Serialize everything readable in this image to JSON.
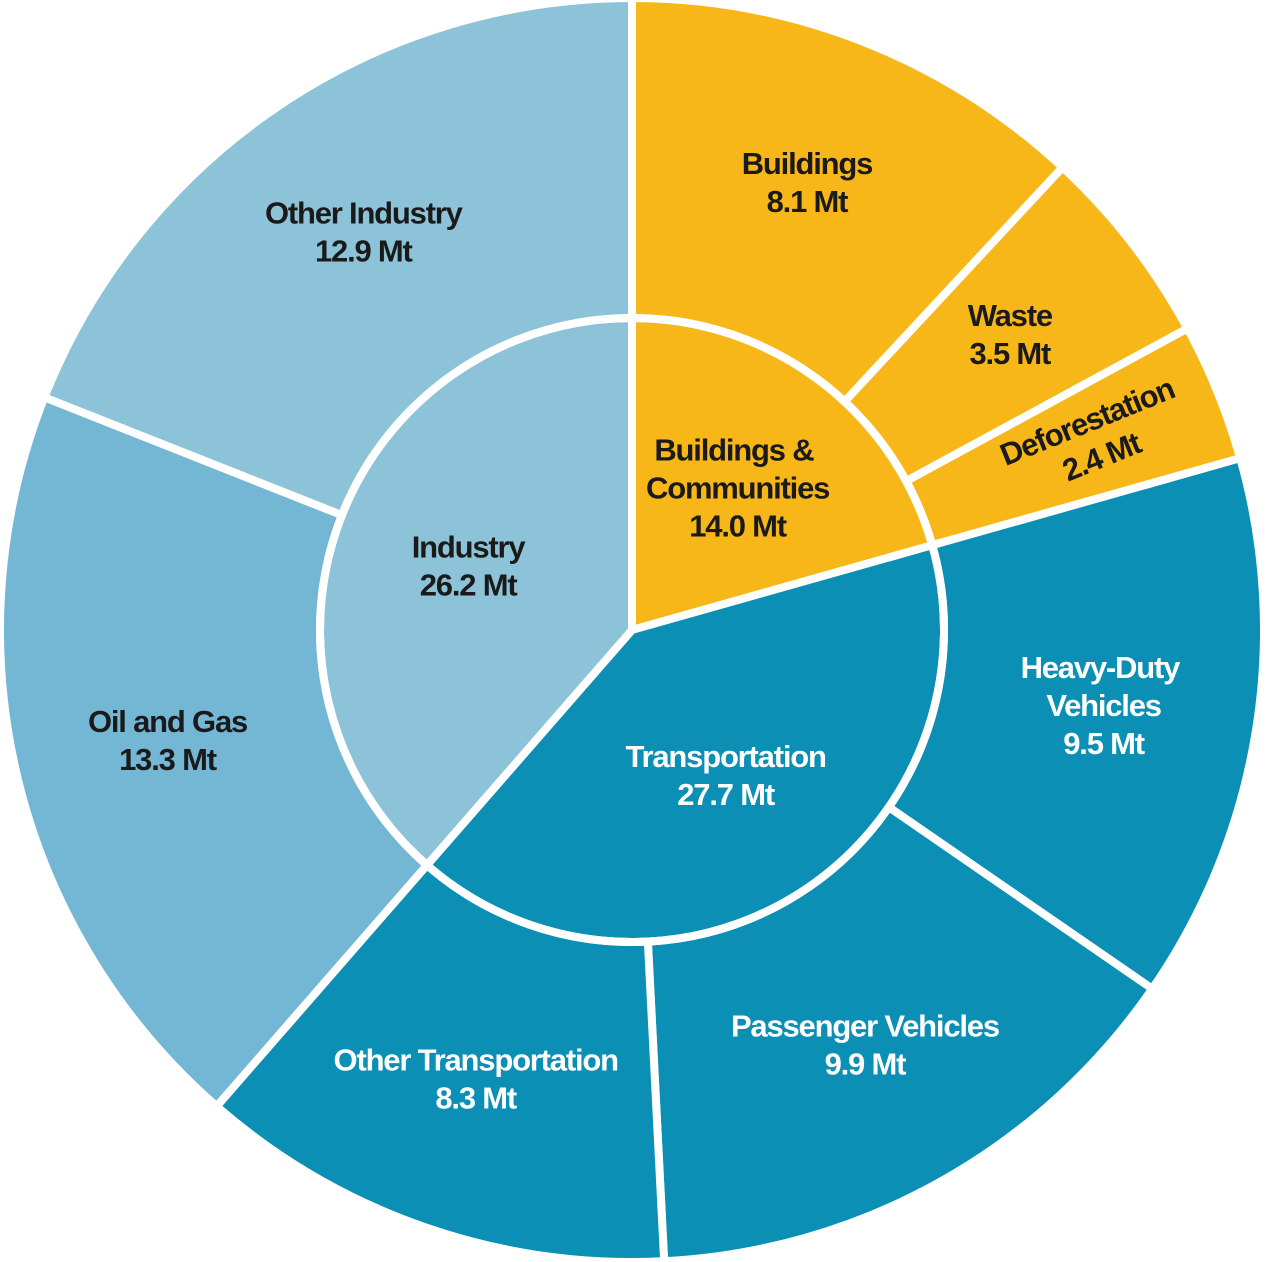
{
  "chart_data": {
    "type": "sunburst",
    "series": [
      {
        "name": "Buildings & Communities",
        "color": "#f8b719",
        "value": 14.0,
        "value_label": "14.0 Mt",
        "children": [
          {
            "name": "Buildings",
            "value": 8.1,
            "value_label": "8.1 Mt"
          },
          {
            "name": "Waste",
            "value": 3.5,
            "value_label": "3.5 Mt"
          },
          {
            "name": "Deforestation",
            "value": 2.4,
            "value_label": "2.4 Mt"
          }
        ]
      },
      {
        "name": "Transportation",
        "color": "#0b8fb4",
        "value": 27.7,
        "value_label": "27.7 Mt",
        "children": [
          {
            "name": "Heavy-Duty Vehicles",
            "value": 9.5,
            "value_label": "9.5 Mt"
          },
          {
            "name": "Passenger Vehicles",
            "value": 9.9,
            "value_label": "9.9 Mt"
          },
          {
            "name": "Other Transportation",
            "value": 8.3,
            "value_label": "8.3 Mt"
          }
        ]
      },
      {
        "name": "Industry",
        "color": "#8cc3d8",
        "value": 26.2,
        "value_label": "26.2 Mt",
        "children": [
          {
            "name": "Oil and Gas",
            "value": 13.3,
            "value_label": "13.3 Mt",
            "color": "#74b7d4"
          },
          {
            "name": "Other Industry",
            "value": 12.9,
            "value_label": "12.9 Mt"
          }
        ]
      }
    ]
  }
}
